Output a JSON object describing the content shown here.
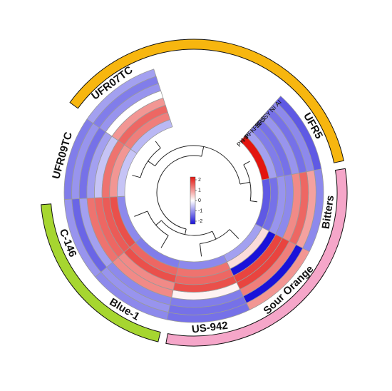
{
  "chart_data": {
    "type": "heatmap",
    "layout": "circular",
    "categories": [
      "UFR5",
      "Bitters",
      "Sour Orange",
      "US-942",
      "Blue-1",
      "C-146",
      "UFR09TC",
      "UFR07TC"
    ],
    "groups": [
      {
        "members": [
          "UFR07TC",
          "UFR5"
        ],
        "color": "#f7b60f"
      },
      {
        "members": [
          "Bitters",
          "Sour Orange",
          "US-942"
        ],
        "color": "#f5a6c9"
      },
      {
        "members": [
          "Blue-1",
          "C-146"
        ],
        "color": "#a6d630"
      }
    ],
    "rows": [
      "AI",
      "NI",
      "SUSY",
      "SPS",
      "FK",
      "PFK",
      "HK",
      "PK"
    ],
    "values": [
      [
        -1.4,
        -1.0,
        0.9,
        -1.2,
        -1.0,
        -0.9,
        -1.1,
        -0.8
      ],
      [
        -1.0,
        0.8,
        -2.2,
        -1.2,
        -0.9,
        -1.3,
        -0.9,
        -1.1
      ],
      [
        -1.2,
        1.3,
        1.1,
        -1.1,
        -1.0,
        -0.8,
        -1.2,
        -0.9
      ],
      [
        -0.9,
        1.0,
        1.6,
        0.1,
        1.0,
        1.2,
        -0.8,
        0.0
      ],
      [
        -1.2,
        -1.0,
        1.6,
        1.5,
        1.0,
        1.3,
        -0.5,
        0.9
      ],
      [
        -1.1,
        -0.9,
        -2.0,
        1.3,
        1.5,
        1.4,
        1.2,
        1.3
      ],
      [
        -0.8,
        -1.2,
        0.3,
        1.2,
        1.3,
        1.5,
        0.9,
        1.1
      ],
      [
        2.4,
        -1.4,
        -0.8,
        -1.0,
        -1.1,
        -1.0,
        -0.5,
        -0.6
      ]
    ],
    "color_scale": {
      "min": -2,
      "max": 2,
      "low_color": "#1a12d9",
      "mid_color": "#ffffff",
      "high_color": "#e3150f",
      "ticks": [
        "2",
        "1",
        "0",
        "-1",
        "-2"
      ]
    }
  }
}
